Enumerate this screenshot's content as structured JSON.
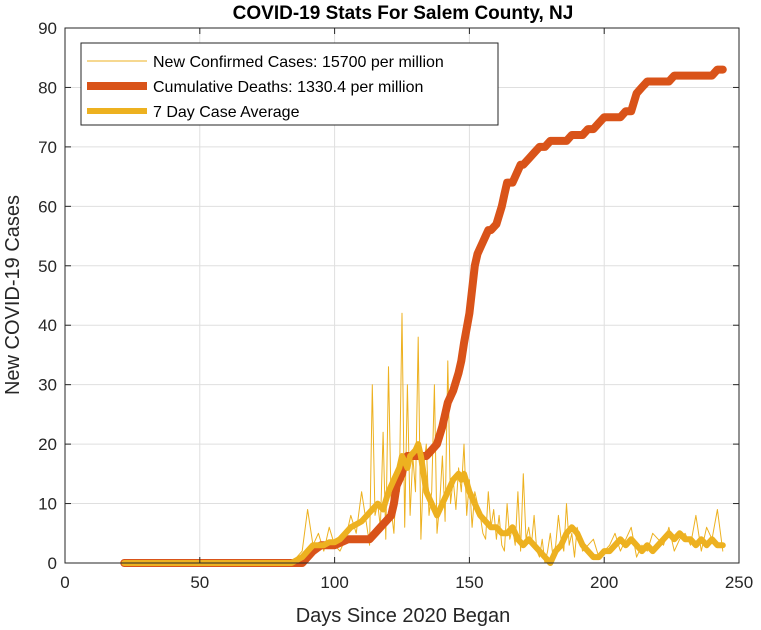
{
  "chart_data": {
    "type": "line",
    "title": "COVID-19 Stats For Salem County, NJ",
    "xlabel": "Days Since 2020 Began",
    "ylabel": "New COVID-19 Cases",
    "xlim": [
      0,
      250
    ],
    "ylim": [
      0,
      90
    ],
    "xticks": [
      0,
      50,
      100,
      150,
      200,
      250
    ],
    "yticks": [
      0,
      10,
      20,
      30,
      40,
      50,
      60,
      70,
      80,
      90
    ],
    "grid": true,
    "legend_position": "top-left",
    "series": [
      {
        "name": "New Confirmed Cases: 15700 per million",
        "color": "#EDB120",
        "style": "thin",
        "x": [
          22,
          40,
          60,
          80,
          84,
          86,
          88,
          90,
          92,
          94,
          96,
          98,
          100,
          102,
          104,
          106,
          108,
          110,
          112,
          113,
          114,
          115,
          116,
          117,
          118,
          119,
          120,
          121,
          122,
          123,
          124,
          125,
          126,
          127,
          128,
          129,
          130,
          131,
          132,
          133,
          134,
          135,
          136,
          137,
          138,
          139,
          140,
          141,
          142,
          143,
          144,
          145,
          146,
          147,
          148,
          149,
          150,
          151,
          152,
          153,
          154,
          155,
          156,
          157,
          158,
          159,
          160,
          161,
          162,
          163,
          164,
          165,
          166,
          167,
          168,
          169,
          170,
          171,
          172,
          173,
          174,
          175,
          176,
          177,
          178,
          179,
          180,
          181,
          182,
          183,
          184,
          185,
          186,
          187,
          188,
          189,
          190,
          192,
          194,
          196,
          198,
          200,
          202,
          204,
          206,
          208,
          210,
          212,
          214,
          216,
          218,
          220,
          222,
          224,
          226,
          228,
          230,
          232,
          234,
          236,
          238,
          240,
          242,
          244
        ],
        "y": [
          0,
          0,
          0,
          0,
          0,
          1,
          2,
          9,
          3,
          5,
          2,
          6,
          3,
          2,
          4,
          8,
          5,
          12,
          6,
          3,
          30,
          8,
          10,
          6,
          22,
          4,
          33,
          9,
          5,
          15,
          12,
          42,
          6,
          30,
          8,
          18,
          12,
          38,
          4,
          16,
          20,
          8,
          12,
          30,
          5,
          10,
          18,
          7,
          34,
          10,
          14,
          9,
          16,
          12,
          20,
          8,
          14,
          6,
          12,
          10,
          8,
          5,
          4,
          12,
          6,
          9,
          4,
          8,
          3,
          2,
          10,
          4,
          6,
          3,
          12,
          2,
          15,
          4,
          6,
          3,
          8,
          2,
          1,
          4,
          0,
          2,
          5,
          1,
          3,
          8,
          4,
          2,
          10,
          3,
          5,
          1,
          6,
          2,
          3,
          4,
          1,
          2,
          3,
          5,
          2,
          4,
          6,
          1,
          3,
          2,
          5,
          4,
          3,
          6,
          2,
          4,
          5,
          3,
          8,
          2,
          6,
          4,
          9,
          2
        ],
        "note_values_estimated": true
      },
      {
        "name": "Cumulative Deaths: 1330.4 per million",
        "color": "#D95319",
        "style": "thick",
        "x": [
          22,
          84,
          88,
          92,
          95,
          100,
          105,
          110,
          113,
          115,
          117,
          119,
          121,
          122,
          123,
          125,
          126,
          127,
          128,
          130,
          132,
          134,
          136,
          138,
          140,
          142,
          144,
          146,
          147,
          148,
          150,
          151,
          152,
          153,
          154,
          155,
          156,
          157,
          158,
          160,
          162,
          163,
          164,
          165,
          166,
          168,
          169,
          170,
          172,
          174,
          176,
          178,
          180,
          182,
          184,
          186,
          188,
          190,
          192,
          194,
          196,
          198,
          200,
          202,
          204,
          206,
          208,
          210,
          212,
          214,
          216,
          218,
          220,
          222,
          224,
          226,
          228,
          230,
          232,
          234,
          236,
          238,
          240,
          242,
          244
        ],
        "y": [
          0,
          0,
          0,
          2,
          3,
          3,
          4,
          4,
          4,
          5,
          6,
          7,
          8,
          10,
          13,
          15,
          17,
          18,
          18,
          18,
          18,
          18,
          19,
          20,
          23,
          27,
          29,
          32,
          34,
          37,
          42,
          46,
          50,
          52,
          53,
          54,
          55,
          56,
          56,
          57,
          60,
          62,
          64,
          64,
          64,
          66,
          67,
          67,
          68,
          69,
          70,
          70,
          71,
          71,
          71,
          71,
          72,
          72,
          72,
          73,
          73,
          74,
          75,
          75,
          75,
          75,
          76,
          76,
          79,
          80,
          81,
          81,
          81,
          81,
          81,
          82,
          82,
          82,
          82,
          82,
          82,
          82,
          82,
          83,
          83
        ],
        "note_values_estimated": true
      },
      {
        "name": "7 Day Case Average",
        "color": "#EDB120",
        "style": "medium",
        "x": [
          22,
          40,
          60,
          80,
          84,
          86,
          88,
          90,
          92,
          94,
          96,
          98,
          100,
          102,
          104,
          106,
          108,
          110,
          112,
          114,
          116,
          118,
          120,
          122,
          124,
          125,
          126,
          127,
          128,
          130,
          131,
          132,
          134,
          136,
          138,
          140,
          142,
          144,
          146,
          147,
          148,
          150,
          152,
          154,
          156,
          158,
          160,
          162,
          164,
          166,
          168,
          170,
          172,
          174,
          176,
          178,
          180,
          182,
          184,
          186,
          188,
          190,
          192,
          194,
          196,
          198,
          200,
          202,
          204,
          206,
          208,
          210,
          212,
          214,
          216,
          218,
          220,
          222,
          224,
          226,
          228,
          230,
          232,
          234,
          236,
          238,
          240,
          242,
          244
        ],
        "y": [
          0,
          0,
          0,
          0,
          0,
          0.5,
          1,
          2,
          3,
          3,
          3,
          3.5,
          3.5,
          4,
          5,
          6,
          6.5,
          7,
          8,
          9,
          10,
          9,
          12,
          14,
          16,
          18,
          17,
          16,
          18,
          19,
          20,
          18,
          12,
          10,
          8,
          10,
          12,
          14,
          15,
          14,
          15,
          12,
          10,
          8,
          7,
          6,
          6,
          5,
          5,
          6,
          4,
          3,
          4,
          3,
          2,
          1,
          0,
          2,
          3,
          5,
          6,
          5,
          3,
          2,
          1,
          1,
          2,
          2,
          3,
          4,
          3,
          4,
          3,
          2,
          3,
          2,
          3,
          4,
          5,
          4,
          5,
          4,
          4,
          3,
          4,
          3,
          4,
          3,
          3
        ],
        "note_values_estimated": true
      }
    ]
  }
}
